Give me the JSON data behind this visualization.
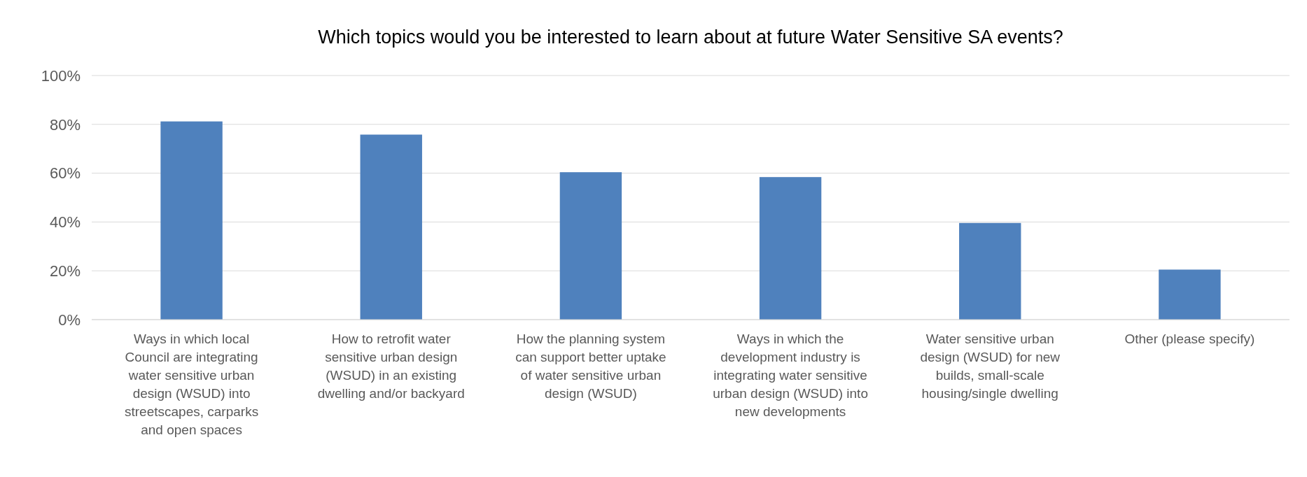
{
  "chart_data": {
    "type": "bar",
    "title": "Which topics would you be interested to learn about at future Water Sensitive SA events?",
    "categories": [
      "Ways in which local Council are integrating water sensitive urban design (WSUD) into streetscapes, carparks and open spaces",
      "How to retrofit water sensitive urban design (WSUD) in an existing dwelling and/or backyard",
      "How the planning system can support better uptake of water sensitive urban design (WSUD)",
      "Ways in which the development industry is integrating water sensitive urban design (WSUD) into new developments",
      "Water sensitive urban design (WSUD) for new builds, small-scale housing/single dwelling",
      "Other (please specify)"
    ],
    "values": [
      81.2,
      75.8,
      60.4,
      58.4,
      39.6,
      20.5
    ],
    "color": "#4f81bd",
    "ylim": [
      0,
      100
    ],
    "yticks": [
      {
        "value": 0,
        "label": "0%"
      },
      {
        "value": 20,
        "label": "20%"
      },
      {
        "value": 40,
        "label": "40%"
      },
      {
        "value": 60,
        "label": "60%"
      },
      {
        "value": 80,
        "label": "80%"
      },
      {
        "value": 100,
        "label": "100%"
      }
    ],
    "grid": "y"
  }
}
